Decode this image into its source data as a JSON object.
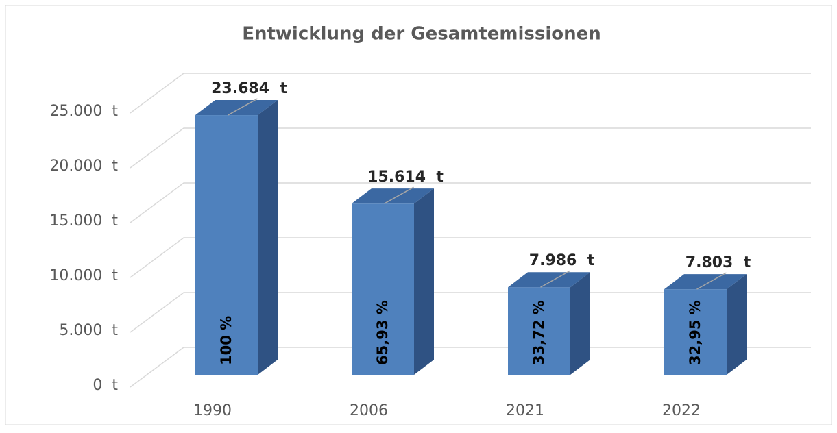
{
  "chart_data": {
    "type": "bar3d",
    "title": "Entwicklung der Gesamtemissionen",
    "categories": [
      "1990",
      "2006",
      "2021",
      "2022"
    ],
    "values": [
      23684,
      15614,
      7986,
      7803
    ],
    "value_labels": [
      "23.684  t",
      "15.614  t",
      "7.986  t",
      "7.803  t"
    ],
    "shares": [
      100,
      65.93,
      33.72,
      32.95
    ],
    "share_labels": [
      "100 %",
      "65,93 %",
      "33,72 %",
      "32,95 %"
    ],
    "color": "#4f81bd",
    "ylim": [
      0,
      25000
    ],
    "yticks": [
      {
        "value": 0,
        "label": "0  t"
      },
      {
        "value": 5000,
        "label": "5.000  t"
      },
      {
        "value": 10000,
        "label": "10.000  t"
      },
      {
        "value": 15000,
        "label": "15.000  t"
      },
      {
        "value": 20000,
        "label": "20.000  t"
      },
      {
        "value": 25000,
        "label": "25.000  t"
      }
    ],
    "grid": true
  }
}
